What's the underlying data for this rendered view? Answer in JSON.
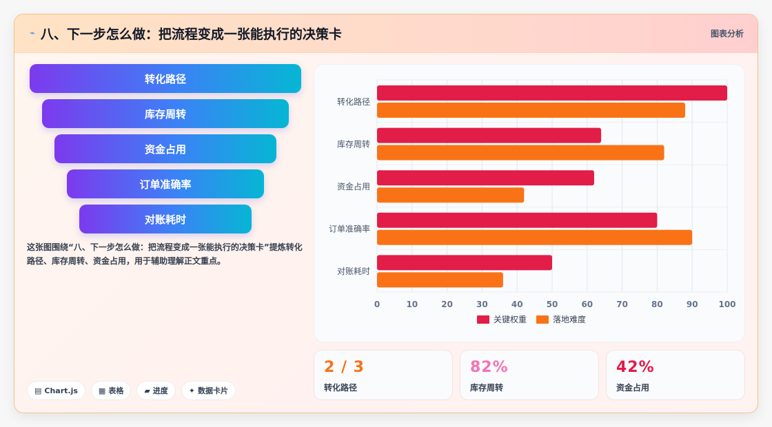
{
  "header": {
    "icon": "pin-icon",
    "title": "八、下一步怎么做：把流程变成一张能执行的决策卡",
    "tag": "图表分析"
  },
  "funnel": {
    "items": [
      "转化路径",
      "库存周转",
      "资金占用",
      "订单准确率",
      "对账耗时"
    ]
  },
  "description": "这张图围绕“八、下一步怎么做：把流程变成一张能执行的决策卡”提炼转化路径、库存周转、资金占用，用于辅助理解正文重点。",
  "chips": [
    {
      "icon": "chart-icon",
      "label": "Chart.js"
    },
    {
      "icon": "table-icon",
      "label": "表格"
    },
    {
      "icon": "progress-icon",
      "label": "进度"
    },
    {
      "icon": "sparkle-icon",
      "label": "数据卡片"
    }
  ],
  "stats": [
    {
      "value": "2 / 3",
      "label": "转化路径",
      "color": "#f97316"
    },
    {
      "value": "82%",
      "label": "库存周转",
      "color": "#f472b6"
    },
    {
      "value": "42%",
      "label": "资金占用",
      "color": "#e11d48"
    }
  ],
  "chart_data": {
    "type": "bar",
    "orientation": "horizontal",
    "categories": [
      "转化路径",
      "库存周转",
      "资金占用",
      "订单准确率",
      "对账耗时"
    ],
    "series": [
      {
        "name": "关键权重",
        "color": "#e11d48",
        "values": [
          100,
          64,
          62,
          80,
          50
        ]
      },
      {
        "name": "落地难度",
        "color": "#f97316",
        "values": [
          88,
          82,
          42,
          90,
          36
        ]
      }
    ],
    "xlim": [
      0,
      100
    ],
    "xticks": [
      0,
      10,
      20,
      30,
      40,
      50,
      60,
      70,
      80,
      90,
      100
    ],
    "grid": true,
    "legend": "bottom"
  }
}
